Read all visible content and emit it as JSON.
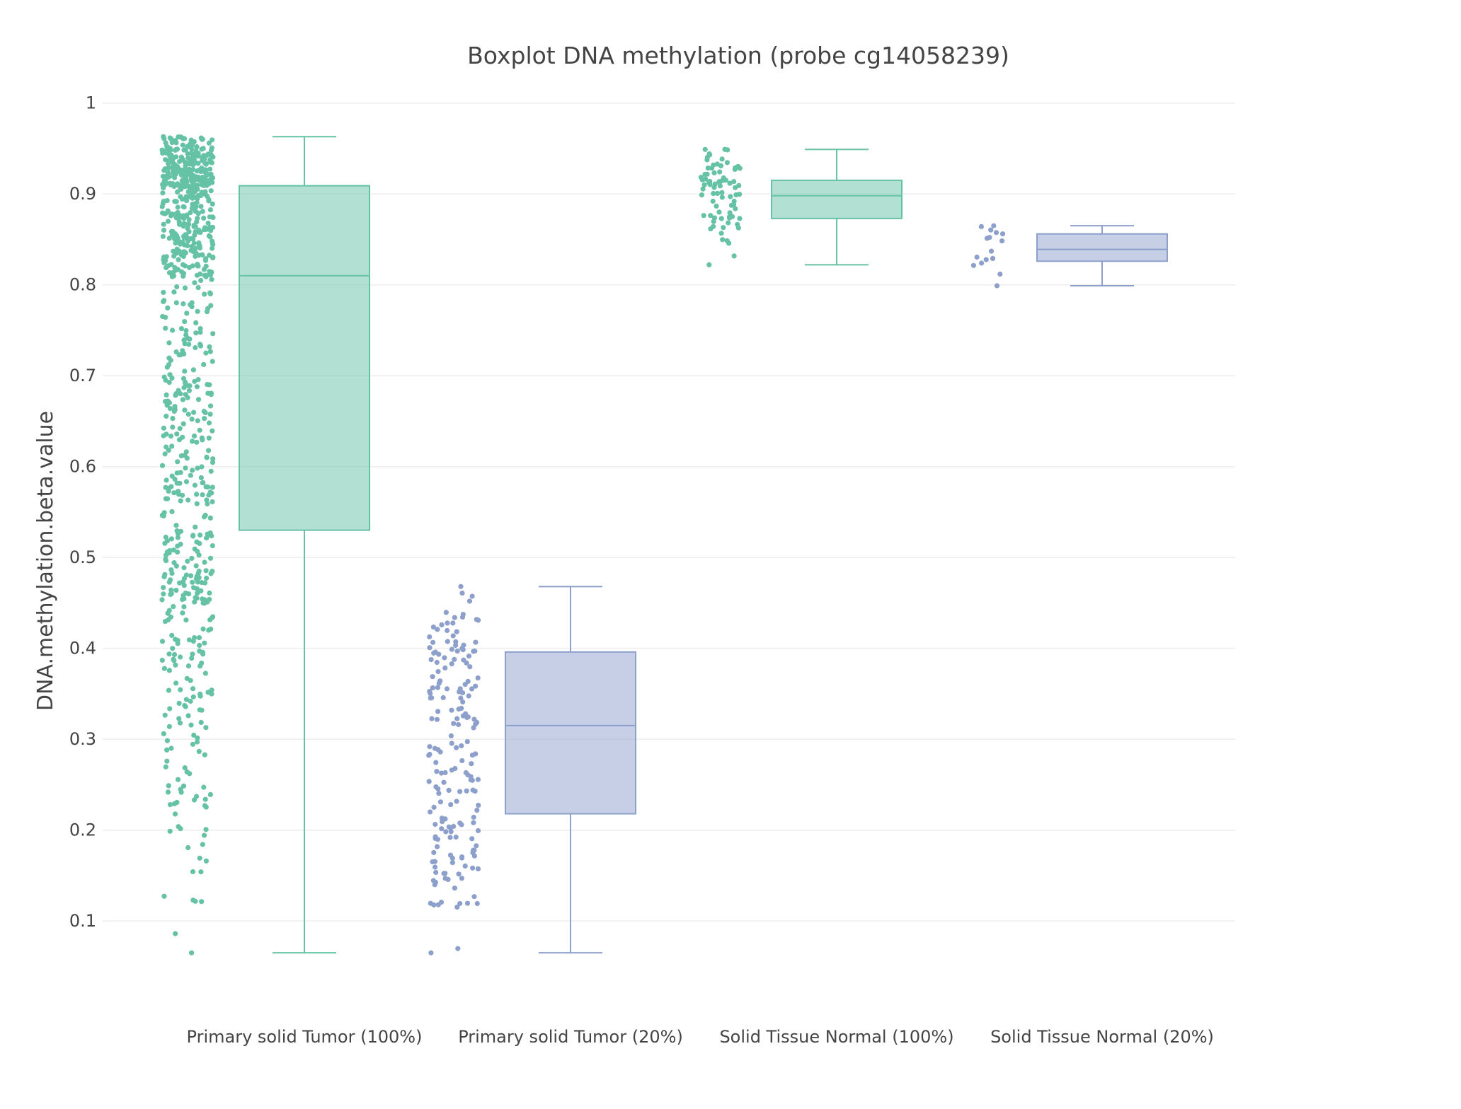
{
  "chart_data": {
    "type": "box",
    "title": "Boxplot DNA methylation (probe cg14058239)",
    "xlabel": "",
    "ylabel": "DNA.methylation.beta.value",
    "ylim": [
      0.02,
      1.02
    ],
    "yticks": [
      0.1,
      0.2,
      0.3,
      0.4,
      0.5,
      0.6,
      0.7,
      0.8,
      0.9,
      1
    ],
    "ytick_labels": [
      "0.1",
      "0.2",
      "0.3",
      "0.4",
      "0.5",
      "0.6",
      "0.7",
      "0.8",
      "0.9",
      "1"
    ],
    "grid": true,
    "legend": "none",
    "categories": [
      "Primary solid Tumor (100%)",
      "Primary solid Tumor (20%)",
      "Solid Tissue Normal (100%)",
      "Solid Tissue Normal (20%)"
    ],
    "series": [
      {
        "category": "Primary solid Tumor (100%)",
        "color": "#66c2a5",
        "min": 0.065,
        "q1": 0.53,
        "median": 0.81,
        "q3": 0.909,
        "max": 0.963,
        "points_count": 850
      },
      {
        "category": "Primary solid Tumor (20%)",
        "color": "#8da0cb",
        "min": 0.065,
        "q1": 0.218,
        "median": 0.315,
        "q3": 0.396,
        "max": 0.468,
        "points_count": 190
      },
      {
        "category": "Solid Tissue Normal (100%)",
        "color": "#66c2a5",
        "min": 0.822,
        "q1": 0.873,
        "median": 0.898,
        "q3": 0.915,
        "max": 0.949,
        "points_count": 80
      },
      {
        "category": "Solid Tissue Normal (20%)",
        "color": "#8da0cb",
        "min": 0.799,
        "q1": 0.826,
        "median": 0.839,
        "q3": 0.856,
        "max": 0.865,
        "points_count": 16
      }
    ]
  }
}
